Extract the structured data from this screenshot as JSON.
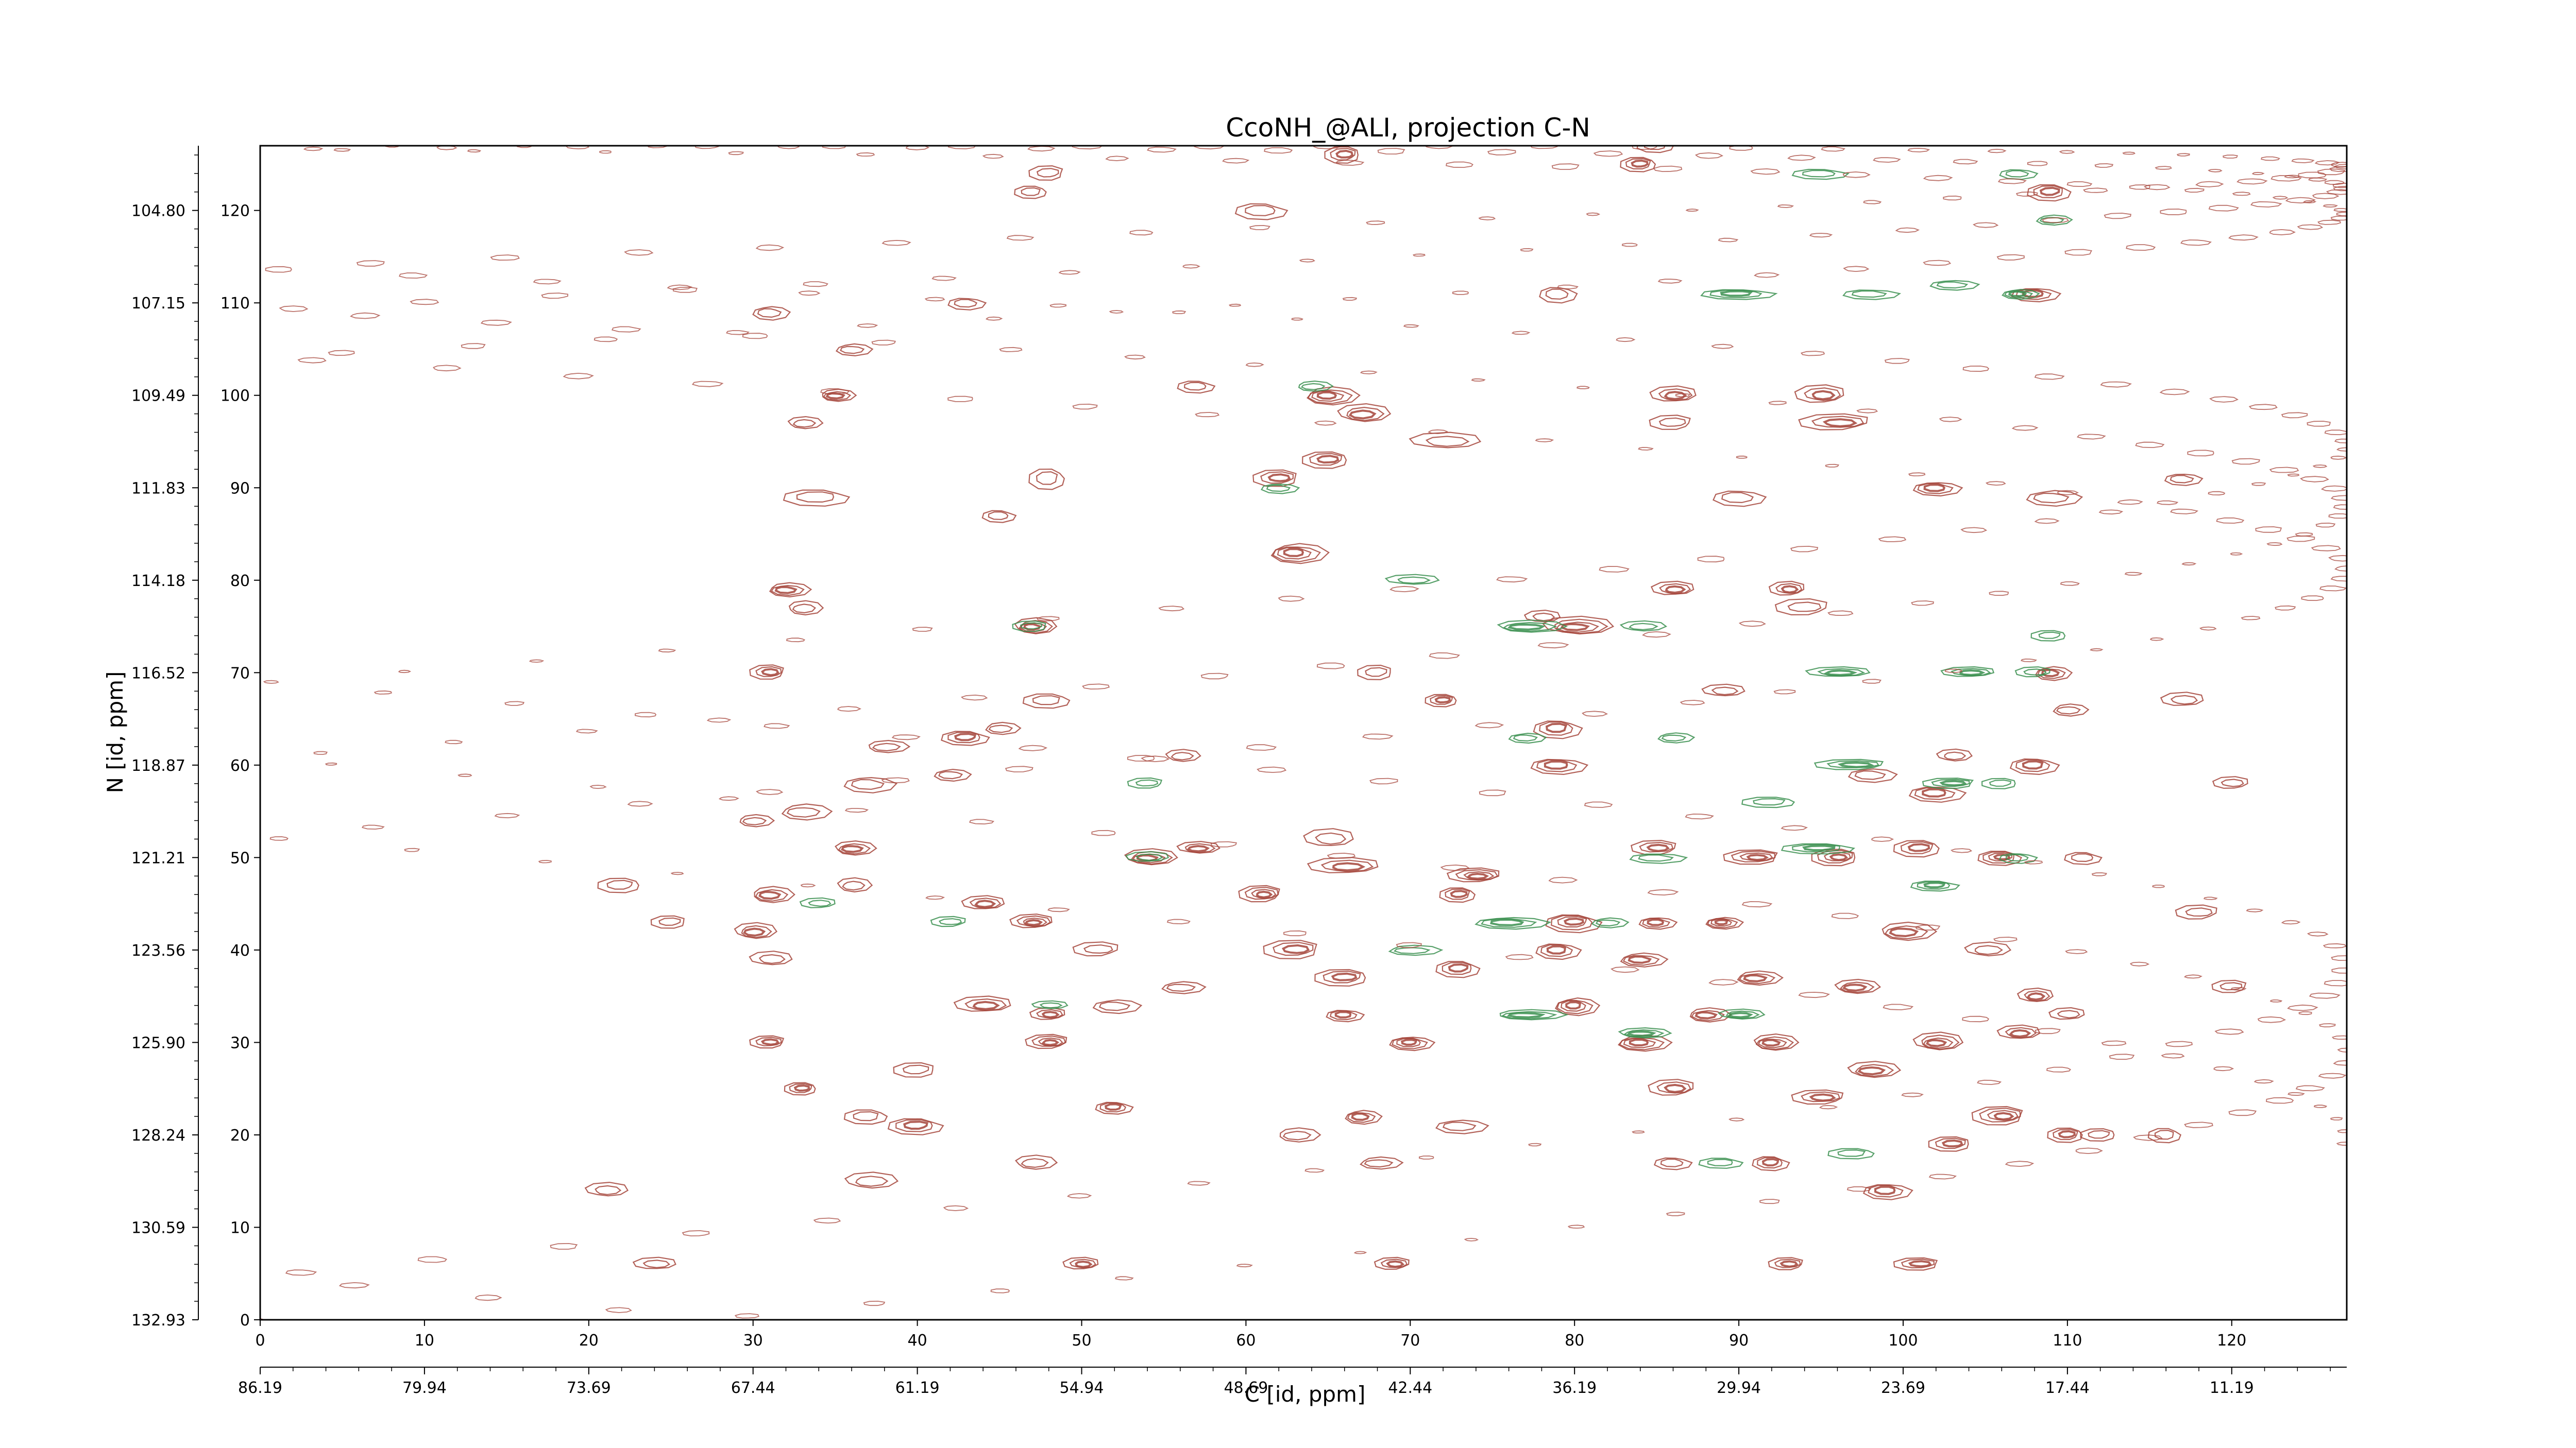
{
  "chart_data": {
    "type": "contour",
    "title": "CcoNH_@ALI, projection C-N",
    "xlabel": "C [id, ppm]",
    "ylabel": "N [id, ppm]",
    "x_index_range": [
      0,
      127
    ],
    "y_index_range": [
      0,
      127
    ],
    "x_index_ticks": [
      "0",
      "10",
      "20",
      "30",
      "40",
      "50",
      "60",
      "70",
      "80",
      "90",
      "100",
      "110",
      "120"
    ],
    "y_index_ticks": [
      "0",
      "10",
      "20",
      "30",
      "40",
      "50",
      "60",
      "70",
      "80",
      "90",
      "100",
      "110",
      "120"
    ],
    "x_ppm_ticks": [
      "86.19",
      "79.94",
      "73.69",
      "67.44",
      "61.19",
      "54.94",
      "48.69",
      "42.44",
      "36.19",
      "29.94",
      "23.69",
      "17.44",
      "11.19"
    ],
    "y_ppm_ticks": [
      "132.93",
      "130.59",
      "128.24",
      "125.90",
      "123.56",
      "121.21",
      "118.87",
      "116.52",
      "114.18",
      "111.83",
      "109.49",
      "107.15",
      "104.80"
    ],
    "series": [
      {
        "sign": "positive",
        "color": "#a5443a"
      },
      {
        "sign": "negative",
        "color": "#3a8f4f"
      }
    ],
    "peaks": [
      [
        48,
        124,
        1.0,
        0.7,
        2
      ],
      [
        66,
        126,
        1.0,
        0.8,
        3
      ],
      [
        84,
        125,
        1.0,
        0.7,
        3
      ],
      [
        109,
        122,
        1.2,
        0.8,
        3
      ],
      [
        61,
        120,
        1.4,
        0.8,
        2
      ],
      [
        79,
        111,
        1.0,
        0.8,
        2
      ],
      [
        108,
        111,
        1.3,
        0.7,
        3
      ],
      [
        31,
        109,
        1.0,
        0.7,
        2
      ],
      [
        36,
        105,
        1.0,
        0.6,
        2
      ],
      [
        65,
        100,
        1.5,
        0.9,
        4
      ],
      [
        35,
        100,
        1.0,
        0.6,
        3
      ],
      [
        33,
        97,
        1.0,
        0.6,
        2
      ],
      [
        67,
        98,
        1.5,
        0.9,
        3
      ],
      [
        72,
        95,
        2.0,
        0.8,
        2
      ],
      [
        86,
        100,
        1.3,
        0.8,
        3
      ],
      [
        95,
        100,
        1.4,
        0.9,
        3
      ],
      [
        96,
        97,
        2.0,
        0.8,
        3
      ],
      [
        86,
        97,
        1.2,
        0.7,
        2
      ],
      [
        62,
        91,
        1.3,
        0.8,
        3
      ],
      [
        65,
        93,
        1.3,
        0.8,
        3
      ],
      [
        48,
        91,
        1.0,
        1.0,
        2
      ],
      [
        34,
        89,
        1.8,
        0.8,
        2
      ],
      [
        45,
        87,
        0.9,
        0.6,
        2
      ],
      [
        90,
        89,
        1.4,
        0.8,
        2
      ],
      [
        102,
        90,
        1.3,
        0.7,
        3
      ],
      [
        109,
        89,
        1.5,
        0.8,
        2
      ],
      [
        63,
        83,
        1.6,
        1.0,
        4
      ],
      [
        32,
        79,
        1.2,
        0.7,
        3
      ],
      [
        33,
        77,
        1.0,
        0.7,
        2
      ],
      [
        47,
        75,
        1.2,
        0.8,
        4
      ],
      [
        80,
        75,
        2.0,
        0.9,
        4
      ],
      [
        78,
        76,
        1.0,
        0.6,
        2
      ],
      [
        86,
        79,
        1.2,
        0.7,
        3
      ],
      [
        93,
        79,
        1.0,
        0.7,
        3
      ],
      [
        94,
        77,
        1.5,
        0.8,
        2
      ],
      [
        31,
        70,
        1.0,
        0.7,
        3
      ],
      [
        68,
        70,
        1.0,
        0.7,
        2
      ],
      [
        72,
        67,
        0.9,
        0.6,
        3
      ],
      [
        48,
        67,
        1.3,
        0.7,
        2
      ],
      [
        43,
        63,
        1.3,
        0.7,
        3
      ],
      [
        79,
        64,
        1.3,
        0.9,
        3
      ],
      [
        79,
        60,
        1.5,
        0.8,
        3
      ],
      [
        37,
        58,
        1.4,
        0.8,
        2
      ],
      [
        42,
        59,
        1.0,
        0.6,
        2
      ],
      [
        33,
        55,
        1.4,
        0.8,
        2
      ],
      [
        30,
        54,
        1.0,
        0.6,
        2
      ],
      [
        36,
        51,
        1.2,
        0.7,
        3
      ],
      [
        54,
        50,
        1.5,
        0.8,
        4
      ],
      [
        57,
        51,
        1.2,
        0.6,
        3
      ],
      [
        65,
        52,
        1.4,
        0.9,
        2
      ],
      [
        66,
        49,
        2.0,
        0.8,
        3
      ],
      [
        74,
        48,
        1.5,
        0.7,
        4
      ],
      [
        85,
        51,
        1.3,
        0.7,
        3
      ],
      [
        91,
        50,
        1.6,
        0.7,
        4
      ],
      [
        96,
        50,
        1.3,
        0.8,
        4
      ],
      [
        101,
        51,
        1.3,
        0.8,
        3
      ],
      [
        106,
        50,
        1.2,
        0.7,
        4
      ],
      [
        111,
        50,
        1.0,
        0.6,
        2
      ],
      [
        108,
        60,
        1.3,
        0.8,
        3
      ],
      [
        102,
        57,
        1.5,
        0.8,
        3
      ],
      [
        98,
        59,
        1.3,
        0.7,
        2
      ],
      [
        109,
        70,
        1.0,
        0.7,
        3
      ],
      [
        110,
        66,
        1.0,
        0.6,
        2
      ],
      [
        31,
        46,
        1.2,
        0.8,
        3
      ],
      [
        36,
        47,
        1.0,
        0.7,
        2
      ],
      [
        30,
        42,
        1.2,
        0.8,
        3
      ],
      [
        31,
        39,
        1.2,
        0.7,
        2
      ],
      [
        44,
        45,
        1.2,
        0.7,
        3
      ],
      [
        47,
        43,
        1.2,
        0.7,
        4
      ],
      [
        51,
        40,
        1.3,
        0.7,
        2
      ],
      [
        61,
        46,
        1.2,
        0.8,
        4
      ],
      [
        63,
        40,
        1.6,
        0.9,
        3
      ],
      [
        66,
        37,
        1.5,
        0.8,
        3
      ],
      [
        73,
        46,
        1.0,
        0.7,
        3
      ],
      [
        73,
        38,
        1.2,
        0.8,
        3
      ],
      [
        80,
        43,
        1.5,
        0.9,
        4
      ],
      [
        79,
        40,
        1.2,
        0.8,
        3
      ],
      [
        85,
        43,
        1.0,
        0.6,
        3
      ],
      [
        89,
        43,
        1.0,
        0.6,
        4
      ],
      [
        84,
        39,
        1.3,
        0.7,
        3
      ],
      [
        91,
        37,
        1.3,
        0.7,
        3
      ],
      [
        100,
        42,
        1.6,
        0.9,
        3
      ],
      [
        97,
        36,
        1.3,
        0.7,
        3
      ],
      [
        105,
        40,
        1.3,
        0.7,
        2
      ],
      [
        108,
        35,
        1.0,
        0.7,
        3
      ],
      [
        44,
        34,
        1.6,
        0.8,
        3
      ],
      [
        48,
        33,
        1.0,
        0.6,
        3
      ],
      [
        48,
        30,
        1.2,
        0.7,
        4
      ],
      [
        31,
        30,
        1.0,
        0.6,
        3
      ],
      [
        40,
        27,
        1.2,
        0.7,
        2
      ],
      [
        33,
        25,
        0.9,
        0.6,
        3
      ],
      [
        37,
        22,
        1.2,
        0.7,
        2
      ],
      [
        40,
        21,
        1.5,
        0.8,
        3
      ],
      [
        52,
        23,
        1.0,
        0.6,
        3
      ],
      [
        66,
        33,
        1.0,
        0.6,
        3
      ],
      [
        70,
        30,
        1.2,
        0.7,
        4
      ],
      [
        80,
        34,
        1.2,
        0.9,
        4
      ],
      [
        84,
        30,
        1.5,
        0.8,
        4
      ],
      [
        88,
        33,
        1.2,
        0.7,
        3
      ],
      [
        92,
        30,
        1.3,
        0.8,
        4
      ],
      [
        98,
        27,
        1.5,
        0.8,
        3
      ],
      [
        102,
        30,
        1.4,
        0.9,
        4
      ],
      [
        107,
        31,
        1.2,
        0.7,
        3
      ],
      [
        110,
        33,
        1.0,
        0.6,
        2
      ],
      [
        86,
        25,
        1.3,
        0.8,
        3
      ],
      [
        95,
        24,
        1.5,
        0.7,
        3
      ],
      [
        106,
        22,
        1.5,
        0.9,
        4
      ],
      [
        103,
        19,
        1.2,
        0.7,
        3
      ],
      [
        110,
        20,
        1.0,
        0.7,
        3
      ],
      [
        116,
        20,
        0.9,
        0.7,
        2
      ],
      [
        92,
        17,
        1.0,
        0.7,
        3
      ],
      [
        86,
        17,
        1.0,
        0.6,
        2
      ],
      [
        99,
        14,
        1.3,
        0.8,
        3
      ],
      [
        73,
        21,
        1.4,
        0.7,
        2
      ],
      [
        67,
        22,
        1.0,
        0.7,
        3
      ],
      [
        68,
        17,
        1.2,
        0.6,
        2
      ],
      [
        63,
        20,
        1.2,
        0.7,
        2
      ],
      [
        47,
        17,
        1.2,
        0.7,
        2
      ],
      [
        37,
        15,
        1.5,
        0.8,
        2
      ],
      [
        21,
        14,
        1.2,
        0.7,
        2
      ],
      [
        24,
        6,
        1.2,
        0.6,
        2
      ],
      [
        50,
        6,
        1.0,
        0.6,
        3
      ],
      [
        69,
        6,
        1.0,
        0.6,
        3
      ],
      [
        93,
        6,
        1.0,
        0.6,
        3
      ],
      [
        101,
        6,
        1.3,
        0.6,
        3
      ],
      [
        112,
        20,
        1.0,
        0.6,
        2
      ],
      [
        47,
        122,
        0.9,
        0.6,
        2
      ],
      [
        85,
        127,
        1.0,
        0.6,
        2
      ],
      [
        57,
        101,
        1.0,
        0.6,
        2
      ],
      [
        43,
        110,
        1.0,
        0.6,
        2
      ],
      [
        117,
        91,
        1.0,
        0.6,
        2
      ],
      [
        52,
        34,
        1.3,
        0.7,
        2
      ],
      [
        56,
        36,
        1.2,
        0.6,
        2
      ],
      [
        45,
        64,
        1.0,
        0.6,
        2
      ],
      [
        38,
        62,
        1.2,
        0.6,
        2
      ],
      [
        56,
        61,
        1.0,
        0.6,
        2
      ],
      [
        103,
        61,
        1.0,
        0.6,
        2
      ],
      [
        89,
        68,
        1.2,
        0.6,
        2
      ],
      [
        117,
        67,
        1.2,
        0.7,
        2
      ],
      [
        120,
        58,
        1.0,
        0.6,
        2
      ],
      [
        118,
        44,
        1.2,
        0.7,
        2
      ],
      [
        120,
        36,
        1.0,
        0.6,
        2
      ],
      [
        25,
        43,
        1.0,
        0.6,
        2
      ],
      [
        22,
        47,
        1.2,
        0.7,
        2
      ]
    ],
    "neg_peaks": [
      [
        90,
        111,
        2.0,
        0.5,
        3
      ],
      [
        98,
        111,
        1.5,
        0.5,
        2
      ],
      [
        103,
        112,
        1.3,
        0.5,
        2
      ],
      [
        107,
        111,
        1.0,
        0.5,
        3
      ],
      [
        109,
        119,
        1.0,
        0.5,
        2
      ],
      [
        64,
        101,
        1.0,
        0.5,
        2
      ],
      [
        77,
        75,
        2.0,
        0.6,
        3
      ],
      [
        84,
        75,
        1.3,
        0.5,
        2
      ],
      [
        70,
        80,
        1.5,
        0.5,
        2
      ],
      [
        96,
        70,
        1.8,
        0.5,
        3
      ],
      [
        104,
        70,
        1.5,
        0.5,
        3
      ],
      [
        108,
        70,
        1.0,
        0.5,
        2
      ],
      [
        97,
        60,
        2.0,
        0.5,
        3
      ],
      [
        103,
        58,
        1.5,
        0.5,
        3
      ],
      [
        106,
        58,
        1.0,
        0.5,
        2
      ],
      [
        92,
        56,
        1.5,
        0.5,
        2
      ],
      [
        95,
        51,
        2.0,
        0.5,
        3
      ],
      [
        102,
        47,
        1.3,
        0.5,
        3
      ],
      [
        107,
        50,
        1.0,
        0.5,
        2
      ],
      [
        85,
        50,
        1.5,
        0.5,
        2
      ],
      [
        76,
        43,
        2.0,
        0.6,
        3
      ],
      [
        82,
        43,
        1.0,
        0.5,
        2
      ],
      [
        70,
        40,
        1.5,
        0.5,
        2
      ],
      [
        77,
        33,
        2.0,
        0.5,
        3
      ],
      [
        84,
        31,
        1.5,
        0.5,
        3
      ],
      [
        90,
        33,
        1.3,
        0.5,
        3
      ],
      [
        48,
        34,
        1.0,
        0.4,
        2
      ],
      [
        54,
        50,
        1.2,
        0.5,
        2
      ],
      [
        34,
        45,
        1.0,
        0.5,
        2
      ],
      [
        42,
        43,
        1.0,
        0.5,
        2
      ],
      [
        54,
        58,
        1.0,
        0.5,
        2
      ],
      [
        47,
        75,
        1.0,
        0.5,
        2
      ],
      [
        109,
        74,
        1.0,
        0.5,
        2
      ],
      [
        97,
        18,
        1.3,
        0.5,
        2
      ],
      [
        89,
        17,
        1.2,
        0.5,
        2
      ],
      [
        95,
        124,
        1.5,
        0.5,
        2
      ],
      [
        107,
        124,
        1.0,
        0.5,
        2
      ],
      [
        62,
        90,
        1.0,
        0.5,
        2
      ],
      [
        77,
        63,
        1.0,
        0.5,
        2
      ],
      [
        86,
        63,
        1.0,
        0.5,
        2
      ]
    ]
  }
}
